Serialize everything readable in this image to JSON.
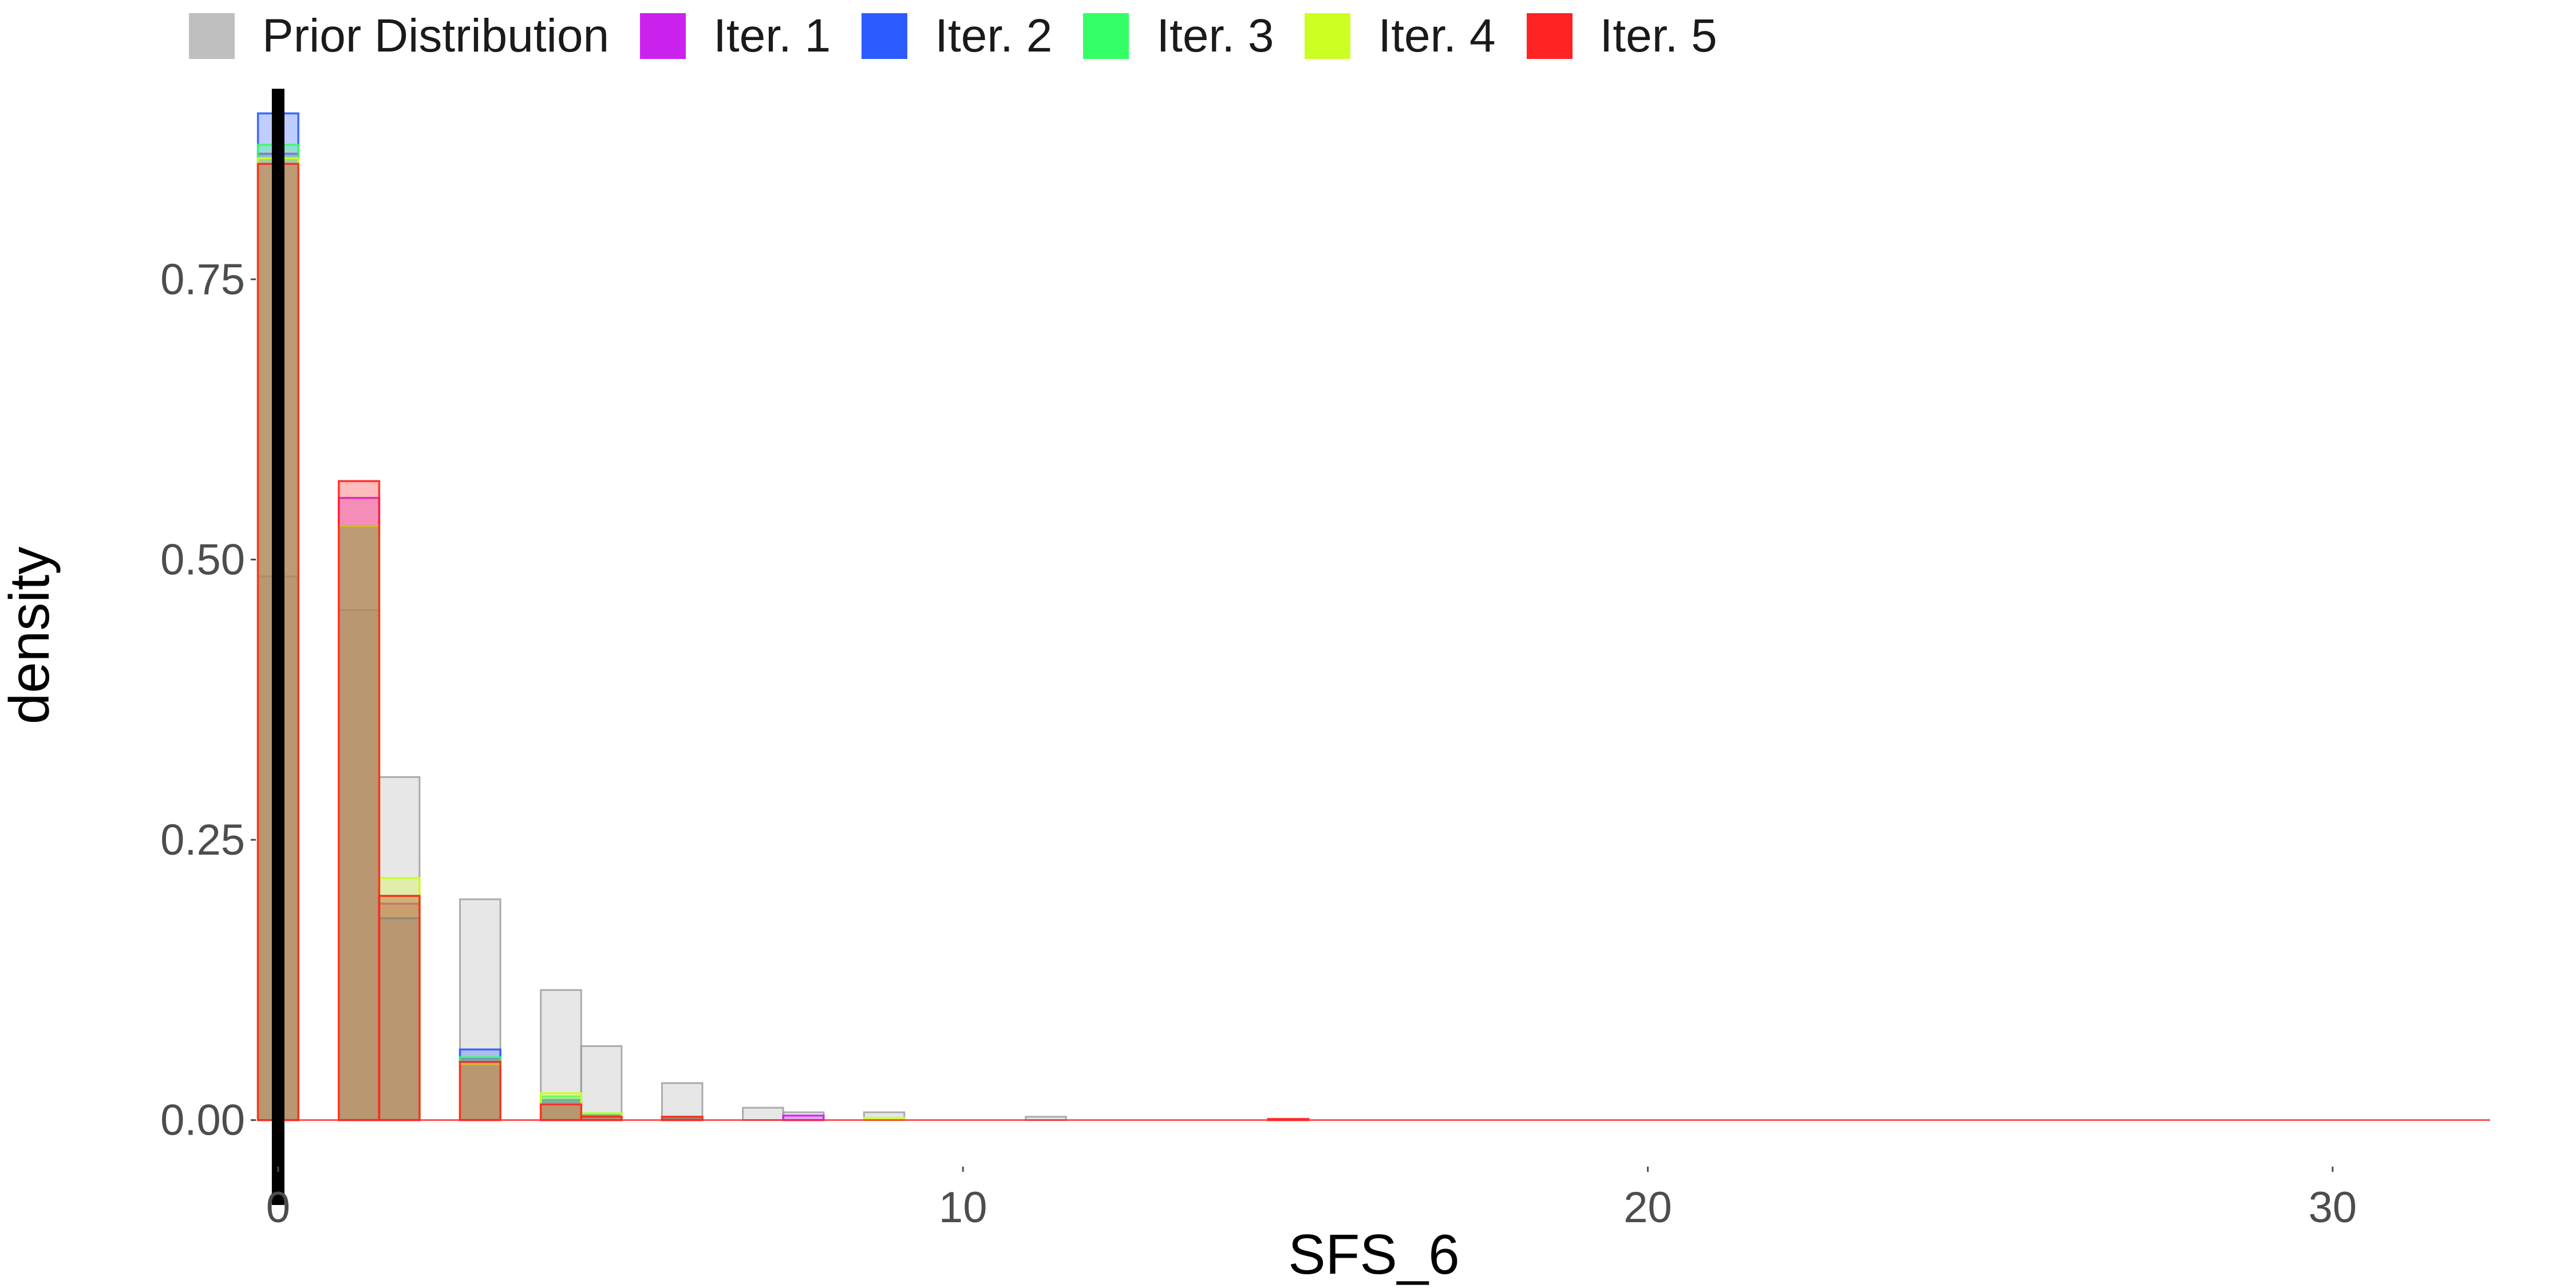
{
  "chart_data": {
    "type": "bar",
    "xlabel": "SFS_6",
    "ylabel": "density",
    "xlim": [
      -0.3,
      32.3
    ],
    "ylim": [
      -0.04,
      0.92
    ],
    "x_ticks": [
      0,
      10,
      20,
      30
    ],
    "y_ticks": [
      0.0,
      0.25,
      0.5,
      0.75
    ],
    "x_tick_labels": [
      "0",
      "10",
      "20",
      "30"
    ],
    "y_tick_labels": [
      "0.00",
      "0.25",
      "0.50",
      "0.75"
    ],
    "bin_width": 0.59,
    "legend_position": "top",
    "reference_line_x": 0,
    "grid": false,
    "series": [
      {
        "name": "Prior Distribution",
        "color": "#bfbfbf",
        "bins": [
          {
            "x": 0,
            "y": 0.485
          },
          {
            "x": 1.18,
            "y": 0.455
          },
          {
            "x": 1.77,
            "y": 0.306
          },
          {
            "x": 2.95,
            "y": 0.197
          },
          {
            "x": 4.13,
            "y": 0.116
          },
          {
            "x": 4.72,
            "y": 0.066
          },
          {
            "x": 5.9,
            "y": 0.033
          },
          {
            "x": 7.08,
            "y": 0.011
          },
          {
            "x": 7.67,
            "y": 0.007
          },
          {
            "x": 8.85,
            "y": 0.007
          },
          {
            "x": 11.21,
            "y": 0.003
          }
        ]
      },
      {
        "name": "Iter. 1",
        "color": "#cc22ee",
        "bins": [
          {
            "x": 0,
            "y": 0.862
          },
          {
            "x": 1.18,
            "y": 0.555
          },
          {
            "x": 1.77,
            "y": 0.193
          },
          {
            "x": 2.95,
            "y": 0.055
          },
          {
            "x": 4.13,
            "y": 0.016
          },
          {
            "x": 4.72,
            "y": 0.004
          },
          {
            "x": 5.9,
            "y": 0.002
          },
          {
            "x": 7.67,
            "y": 0.004
          }
        ]
      },
      {
        "name": "Iter. 2",
        "color": "#2a5cff",
        "bins": [
          {
            "x": 0,
            "y": 0.898
          },
          {
            "x": 1.18,
            "y": 0.53
          },
          {
            "x": 1.77,
            "y": 0.18
          },
          {
            "x": 2.95,
            "y": 0.063
          },
          {
            "x": 4.13,
            "y": 0.018
          },
          {
            "x": 4.72,
            "y": 0.005
          },
          {
            "x": 5.9,
            "y": 0.002
          }
        ]
      },
      {
        "name": "Iter. 3",
        "color": "#33ff66",
        "bins": [
          {
            "x": 0,
            "y": 0.87
          },
          {
            "x": 1.18,
            "y": 0.53
          },
          {
            "x": 1.77,
            "y": 0.2
          },
          {
            "x": 2.95,
            "y": 0.056
          },
          {
            "x": 4.13,
            "y": 0.021
          },
          {
            "x": 4.72,
            "y": 0.006
          },
          {
            "x": 5.9,
            "y": 0.003
          }
        ]
      },
      {
        "name": "Iter. 4",
        "color": "#ccff22",
        "bins": [
          {
            "x": 0,
            "y": 0.858
          },
          {
            "x": 1.18,
            "y": 0.53
          },
          {
            "x": 1.77,
            "y": 0.216
          },
          {
            "x": 2.95,
            "y": 0.05
          },
          {
            "x": 4.13,
            "y": 0.024
          },
          {
            "x": 4.72,
            "y": 0.006
          },
          {
            "x": 5.9,
            "y": 0.003
          },
          {
            "x": 8.85,
            "y": 0.002
          }
        ]
      },
      {
        "name": "Iter. 5",
        "color": "#ff2222",
        "bins": [
          {
            "x": 0,
            "y": 0.853
          },
          {
            "x": 1.18,
            "y": 0.57
          },
          {
            "x": 1.77,
            "y": 0.2
          },
          {
            "x": 2.95,
            "y": 0.052
          },
          {
            "x": 4.13,
            "y": 0.014
          },
          {
            "x": 4.72,
            "y": 0.003
          },
          {
            "x": 5.9,
            "y": 0.003
          },
          {
            "x": 14.75,
            "y": 0.001
          }
        ]
      }
    ]
  }
}
